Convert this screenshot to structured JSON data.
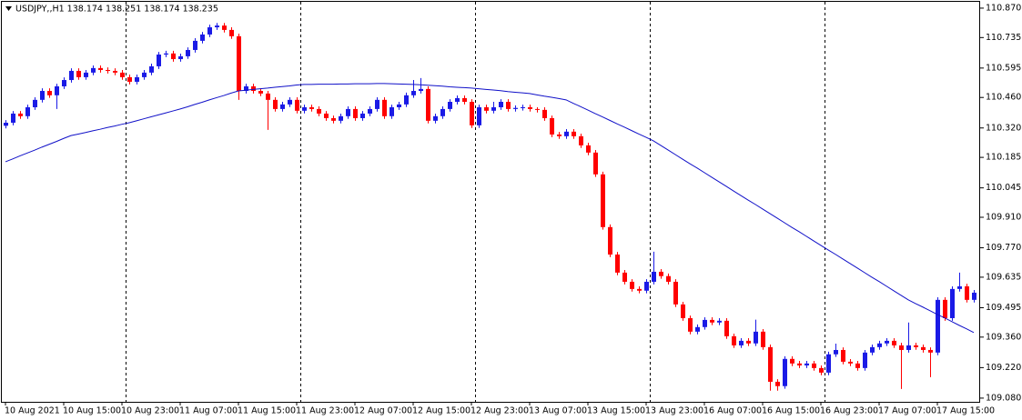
{
  "chart_data": {
    "type": "candlestick",
    "title": "USDJPY,,H1  138.174 138.251 138.174 138.235",
    "categories": [
      "10 Aug 2021",
      null,
      null,
      null,
      null,
      null,
      null,
      null,
      "10 Aug 15:00",
      null,
      null,
      null,
      null,
      null,
      null,
      null,
      "10 Aug 23:00",
      null,
      null,
      null,
      null,
      null,
      null,
      null,
      "11 Aug 07:00",
      null,
      null,
      null,
      null,
      null,
      null,
      null,
      "11 Aug 15:00",
      null,
      null,
      null,
      null,
      null,
      null,
      null,
      "11 Aug 23:00",
      null,
      null,
      null,
      null,
      null,
      null,
      null,
      "12 Aug 07:00",
      null,
      null,
      null,
      null,
      null,
      null,
      null,
      "12 Aug 15:00",
      null,
      null,
      null,
      null,
      null,
      null,
      null,
      "12 Aug 23:00",
      null,
      null,
      null,
      null,
      null,
      null,
      null,
      "13 Aug 07:00",
      null,
      null,
      null,
      null,
      null,
      null,
      null,
      "13 Aug 15:00",
      null,
      null,
      null,
      null,
      null,
      null,
      null,
      "13 Aug 23:00",
      null,
      null,
      null,
      null,
      null,
      null,
      null,
      "16 Aug 07:00",
      null,
      null,
      null,
      null,
      null,
      null,
      null,
      "16 Aug 15:00",
      null,
      null,
      null,
      null,
      null,
      null,
      null,
      "16 Aug 23:00",
      null,
      null,
      null,
      null,
      null,
      null,
      null,
      "17 Aug 07:00",
      null,
      null,
      null,
      null,
      null,
      null,
      null,
      "17 Aug 15:00",
      null,
      null,
      null,
      null,
      null
    ],
    "open": [
      110.33,
      110.344,
      110.386,
      110.374,
      110.415,
      110.449,
      110.49,
      110.47,
      110.511,
      110.54,
      110.582,
      110.553,
      110.574,
      110.595,
      110.586,
      110.582,
      110.574,
      110.553,
      110.532,
      110.553,
      110.574,
      110.603,
      110.657,
      110.662,
      110.636,
      110.649,
      110.678,
      110.72,
      110.749,
      110.782,
      110.79,
      110.77,
      110.741,
      110.49,
      110.511,
      110.49,
      110.478,
      110.449,
      110.407,
      110.428,
      110.449,
      110.399,
      110.415,
      110.407,
      110.386,
      110.365,
      110.353,
      110.374,
      110.407,
      110.365,
      110.386,
      110.407,
      110.449,
      110.374,
      110.415,
      110.428,
      110.47,
      110.49,
      110.499,
      110.353,
      110.374,
      110.407,
      110.44,
      110.457,
      110.44,
      110.332,
      110.415,
      110.399,
      110.415,
      110.44,
      110.407,
      110.412,
      110.415,
      110.407,
      110.403,
      110.365,
      110.29,
      110.282,
      110.303,
      110.282,
      110.24,
      110.207,
      110.107,
      109.865,
      109.739,
      109.656,
      109.614,
      109.581,
      109.573,
      109.614,
      109.66,
      109.64,
      109.614,
      109.51,
      109.447,
      109.385,
      109.406,
      109.439,
      109.427,
      109.435,
      109.364,
      109.322,
      109.343,
      109.331,
      109.385,
      109.314,
      109.155,
      109.135,
      109.26,
      109.239,
      109.23,
      109.239,
      109.218,
      109.197,
      109.281,
      109.301,
      109.247,
      109.239,
      109.218,
      109.289,
      109.314,
      109.331,
      109.343,
      109.322,
      109.301,
      109.322,
      109.314,
      109.301,
      109.289,
      109.531,
      109.447,
      109.581,
      109.593,
      109.531
    ],
    "high": [
      110.356,
      110.398,
      110.398,
      110.427,
      110.461,
      110.502,
      110.502,
      110.523,
      110.552,
      110.594,
      110.594,
      110.586,
      110.607,
      110.607,
      110.598,
      110.594,
      110.586,
      110.565,
      110.565,
      110.586,
      110.615,
      110.669,
      110.674,
      110.674,
      110.661,
      110.69,
      110.732,
      110.761,
      110.794,
      110.802,
      110.802,
      110.782,
      110.753,
      110.523,
      110.523,
      110.502,
      110.49,
      110.461,
      110.44,
      110.461,
      110.461,
      110.427,
      110.427,
      110.419,
      110.398,
      110.377,
      110.386,
      110.419,
      110.419,
      110.398,
      110.419,
      110.461,
      110.461,
      110.427,
      110.44,
      110.482,
      110.54,
      110.549,
      110.511,
      110.386,
      110.419,
      110.452,
      110.469,
      110.469,
      110.452,
      110.427,
      110.427,
      110.44,
      110.452,
      110.452,
      110.424,
      110.427,
      110.427,
      110.415,
      110.415,
      110.377,
      110.302,
      110.315,
      110.315,
      110.294,
      110.252,
      110.219,
      110.119,
      109.877,
      109.751,
      109.668,
      109.626,
      109.593,
      109.626,
      109.752,
      109.672,
      109.652,
      109.626,
      109.522,
      109.459,
      109.418,
      109.451,
      109.451,
      109.447,
      109.447,
      109.376,
      109.355,
      109.355,
      109.44,
      109.397,
      109.326,
      109.167,
      109.272,
      109.272,
      109.251,
      109.251,
      109.251,
      109.23,
      109.293,
      109.33,
      109.313,
      109.259,
      109.251,
      109.301,
      109.326,
      109.343,
      109.355,
      109.355,
      109.334,
      109.427,
      109.334,
      109.326,
      109.313,
      109.543,
      109.543,
      109.593,
      109.656,
      109.605,
      109.576
    ],
    "low": [
      110.318,
      110.332,
      110.362,
      110.362,
      110.403,
      110.437,
      110.458,
      110.407,
      110.499,
      110.528,
      110.541,
      110.541,
      110.562,
      110.574,
      110.57,
      110.562,
      110.541,
      110.52,
      110.52,
      110.541,
      110.562,
      110.591,
      110.645,
      110.624,
      110.624,
      110.637,
      110.666,
      110.708,
      110.737,
      110.77,
      110.758,
      110.729,
      110.449,
      110.478,
      110.478,
      110.466,
      110.311,
      110.395,
      110.395,
      110.416,
      110.387,
      110.387,
      110.395,
      110.374,
      110.353,
      110.341,
      110.341,
      110.362,
      110.353,
      110.353,
      110.374,
      110.395,
      110.362,
      110.362,
      110.403,
      110.416,
      110.458,
      110.478,
      110.341,
      110.341,
      110.362,
      110.395,
      110.428,
      110.428,
      110.32,
      110.32,
      110.387,
      110.387,
      110.403,
      110.395,
      110.395,
      110.4,
      110.395,
      110.391,
      110.353,
      110.278,
      110.27,
      110.27,
      110.27,
      110.228,
      110.195,
      110.095,
      109.853,
      109.727,
      109.644,
      109.602,
      109.569,
      109.561,
      109.561,
      109.602,
      109.628,
      109.602,
      109.498,
      109.435,
      109.373,
      109.373,
      109.394,
      109.415,
      109.415,
      109.352,
      109.31,
      109.31,
      109.319,
      109.319,
      109.302,
      109.114,
      109.114,
      109.123,
      109.227,
      109.218,
      109.218,
      109.206,
      109.185,
      109.185,
      109.269,
      109.235,
      109.227,
      109.206,
      109.206,
      109.277,
      109.302,
      109.319,
      109.31,
      109.122,
      109.289,
      109.302,
      109.289,
      109.176,
      109.277,
      109.435,
      109.435,
      109.569,
      109.519,
      109.519
    ],
    "close": [
      110.344,
      110.386,
      110.374,
      110.415,
      110.449,
      110.49,
      110.47,
      110.511,
      110.54,
      110.582,
      110.553,
      110.574,
      110.595,
      110.586,
      110.582,
      110.574,
      110.553,
      110.532,
      110.553,
      110.574,
      110.603,
      110.657,
      110.662,
      110.636,
      110.649,
      110.678,
      110.72,
      110.749,
      110.782,
      110.79,
      110.77,
      110.741,
      110.49,
      110.511,
      110.49,
      110.478,
      110.449,
      110.407,
      110.428,
      110.449,
      110.399,
      110.415,
      110.407,
      110.386,
      110.365,
      110.353,
      110.374,
      110.407,
      110.365,
      110.386,
      110.407,
      110.449,
      110.374,
      110.415,
      110.428,
      110.47,
      110.49,
      110.499,
      110.353,
      110.374,
      110.407,
      110.44,
      110.457,
      110.44,
      110.332,
      110.415,
      110.399,
      110.415,
      110.44,
      110.407,
      110.412,
      110.415,
      110.407,
      110.403,
      110.365,
      110.29,
      110.282,
      110.303,
      110.282,
      110.24,
      110.207,
      110.107,
      109.865,
      109.739,
      109.656,
      109.614,
      109.581,
      109.573,
      109.614,
      109.66,
      109.64,
      109.614,
      109.51,
      109.447,
      109.385,
      109.406,
      109.439,
      109.427,
      109.435,
      109.364,
      109.322,
      109.343,
      109.331,
      109.385,
      109.314,
      109.155,
      109.135,
      109.26,
      109.239,
      109.23,
      109.239,
      109.218,
      109.197,
      109.281,
      109.301,
      109.247,
      109.239,
      109.218,
      109.289,
      109.314,
      109.331,
      109.343,
      109.322,
      109.301,
      109.322,
      109.314,
      109.301,
      109.289,
      109.531,
      109.447,
      109.581,
      109.593,
      109.531,
      109.564
    ],
    "up_color": "#1a1ae6",
    "down_color": "#ff0000",
    "ma": {
      "color": "#1010c8",
      "values": [
        110.165,
        110.178,
        110.192,
        110.205,
        110.218,
        110.232,
        110.245,
        110.258,
        110.272,
        110.285,
        110.292,
        110.299,
        110.307,
        110.314,
        110.322,
        110.329,
        110.337,
        110.344,
        110.353,
        110.362,
        110.371,
        110.38,
        110.389,
        110.398,
        110.407,
        110.417,
        110.428,
        110.438,
        110.449,
        110.459,
        110.469,
        110.48,
        110.49,
        110.493,
        110.497,
        110.5,
        110.503,
        110.507,
        110.51,
        110.513,
        110.517,
        110.52,
        110.52,
        110.521,
        110.521,
        110.521,
        110.522,
        110.522,
        110.523,
        110.523,
        110.523,
        110.524,
        110.524,
        110.523,
        110.522,
        110.521,
        110.52,
        110.518,
        110.516,
        110.514,
        110.512,
        110.509,
        110.507,
        110.505,
        110.503,
        110.5,
        110.497,
        110.494,
        110.491,
        110.487,
        110.484,
        110.481,
        110.478,
        110.472,
        110.466,
        110.461,
        110.455,
        110.449,
        110.433,
        110.418,
        110.402,
        110.386,
        110.371,
        110.355,
        110.339,
        110.324,
        110.308,
        110.292,
        110.277,
        110.261,
        110.24,
        110.219,
        110.198,
        110.177,
        110.156,
        110.136,
        110.115,
        110.094,
        110.073,
        110.052,
        110.031,
        110.01,
        109.989,
        109.969,
        109.948,
        109.927,
        109.906,
        109.885,
        109.864,
        109.844,
        109.823,
        109.802,
        109.781,
        109.76,
        109.74,
        109.719,
        109.698,
        109.677,
        109.656,
        109.635,
        109.615,
        109.594,
        109.573,
        109.552,
        109.531,
        109.514,
        109.498,
        109.481,
        109.464,
        109.448,
        109.431,
        109.414,
        109.398,
        109.381
      ]
    },
    "ylim": [
      109.063,
      110.899
    ],
    "yticks": [
      {
        "value": 110.87,
        "label": "110.870"
      },
      110.735,
      110.595,
      {
        "value": 110.46,
        "label": "110.460"
      },
      {
        "value": 110.32,
        "label": "110.320"
      },
      110.185,
      110.045,
      {
        "value": 109.91,
        "label": "109.910"
      },
      {
        "value": 109.77,
        "label": "109.770"
      },
      109.635,
      109.495,
      {
        "value": 109.36,
        "label": "109.360"
      },
      {
        "value": 109.22,
        "label": "109.220"
      },
      {
        "value": 109.08,
        "label": "109.080"
      }
    ]
  }
}
